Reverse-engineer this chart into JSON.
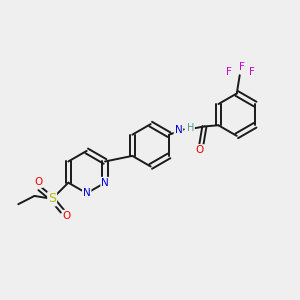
{
  "background_color": "#efefef",
  "bond_color": "#1a1a1a",
  "atom_colors": {
    "N": "#0000dd",
    "O": "#ee0000",
    "S": "#bbbb00",
    "F": "#cc00cc",
    "H_color": "#559999",
    "C": "#1a1a1a"
  },
  "lw": 1.4,
  "fs": 7.5
}
